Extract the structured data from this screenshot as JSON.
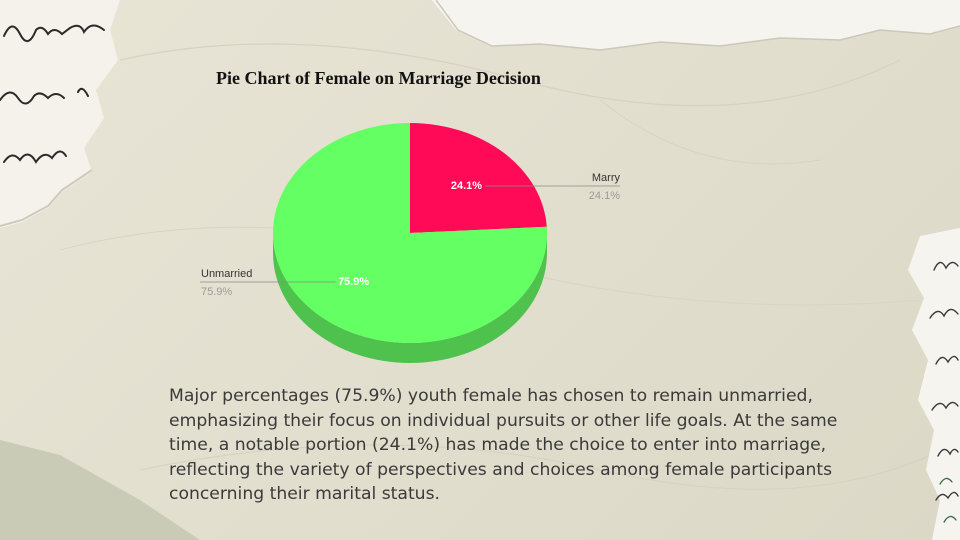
{
  "chart_data": {
    "type": "pie",
    "title": "Pie Chart of Female on Marriage Decision",
    "categories": [
      "Marry",
      "Unmarried"
    ],
    "values": [
      24.1,
      75.9
    ],
    "data_labels": [
      "24.1%",
      "75.9%"
    ],
    "legend_values": [
      "24.1%",
      "75.9%"
    ],
    "colors": [
      "#ff0a57",
      "#63ff63"
    ],
    "side_colors": [
      "#c20a44",
      "#4ec24c"
    ],
    "style": "3d",
    "start_angle": "12 o'clock, clockwise"
  },
  "description": "Major percentages (75.9%) youth female has chosen to remain unmarried, emphasizing their focus on individual pursuits or other life goals. At the same time, a notable portion (24.1%) has made the choice to enter into marriage, reflecting the variety of perspectives and choices among female participants concerning their marital status.",
  "colors": {
    "background": "#e6e2d2",
    "paper": "#f6f4ee",
    "handwriting": "#2a2a2a",
    "slice_marry": "#ff0a57",
    "slice_unmarried": "#63ff63"
  }
}
